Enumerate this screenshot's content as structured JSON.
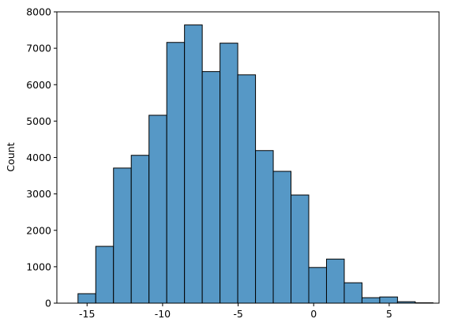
{
  "chart_data": {
    "type": "histogram",
    "y_label": "Count",
    "bins": [
      -15.6,
      -14.425,
      -13.25,
      -12.075,
      -10.9,
      -9.725,
      -8.55,
      -7.375,
      -6.2,
      -5.025,
      -3.85,
      -2.675,
      -1.5,
      -0.325,
      0.85,
      2.025,
      3.2,
      4.375,
      5.55,
      6.725,
      7.9
    ],
    "counts": [
      260,
      1560,
      3710,
      4060,
      5160,
      7160,
      7640,
      6360,
      7140,
      6270,
      4190,
      3620,
      2970,
      980,
      1210,
      560,
      150,
      170,
      40,
      10
    ],
    "color": "#5698c6",
    "edgecolor": "#000000",
    "xlim": [
      -17,
      8.3
    ],
    "xticks": [
      -15,
      -10,
      -5,
      0,
      5
    ],
    "ylim": [
      0,
      8000
    ],
    "yticks": [
      0,
      1000,
      2000,
      3000,
      4000,
      5000,
      6000,
      7000,
      8000
    ]
  }
}
